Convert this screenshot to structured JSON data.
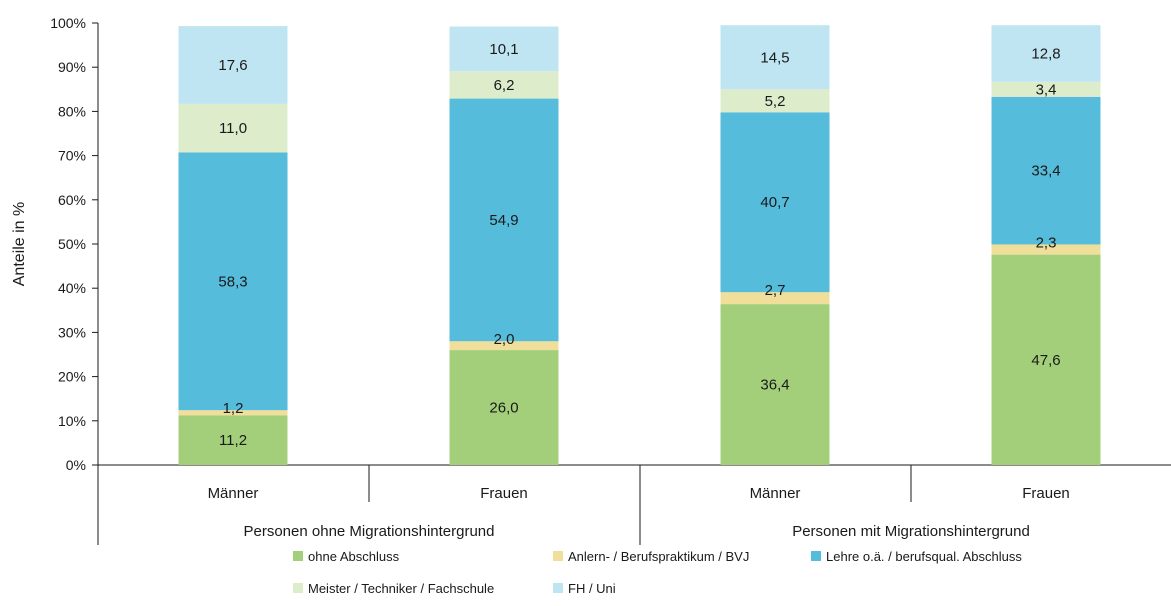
{
  "chart_data": {
    "type": "bar",
    "stacked": true,
    "ylabel": "Anteile in %",
    "ylim": [
      0,
      100
    ],
    "yticks": [
      "0%",
      "10%",
      "20%",
      "30%",
      "40%",
      "50%",
      "60%",
      "70%",
      "80%",
      "90%",
      "100%"
    ],
    "categories": [
      "Männer",
      "Frauen",
      "Männer",
      "Frauen"
    ],
    "groups": [
      {
        "label": "Personen ohne Migrationshintergrund",
        "categories": [
          0,
          1
        ]
      },
      {
        "label": "Personen mit Migrationshintergrund",
        "categories": [
          2,
          3
        ]
      }
    ],
    "series": [
      {
        "name": "ohne Abschluss",
        "color": "#a3cf7a",
        "values": [
          11.2,
          26.0,
          36.4,
          47.6
        ],
        "labels": [
          "11,2",
          "26,0",
          "36,4",
          "47,6"
        ]
      },
      {
        "name": "Anlern- / Berufspraktikum / BVJ",
        "color": "#f0df9b",
        "values": [
          1.2,
          2.0,
          2.7,
          2.3
        ],
        "labels": [
          "1,2",
          "2,0",
          "2,7",
          "2,3"
        ]
      },
      {
        "name": "Lehre o.ä. / berufsqual. Abschluss",
        "color": "#56bcdc",
        "values": [
          58.3,
          54.9,
          40.7,
          33.4
        ],
        "labels": [
          "58,3",
          "54,9",
          "40,7",
          "33,4"
        ]
      },
      {
        "name": "Meister / Techniker / Fachschule",
        "color": "#ddeccb",
        "values": [
          11.0,
          6.2,
          5.2,
          3.4
        ],
        "labels": [
          "11,0",
          "6,2",
          "5,2",
          "3,4"
        ]
      },
      {
        "name": "FH / Uni",
        "color": "#bfe4f2",
        "values": [
          17.6,
          10.1,
          14.5,
          12.8
        ],
        "labels": [
          "17,6",
          "10,1",
          "14,5",
          "12,8"
        ]
      }
    ],
    "legend_position": "bottom",
    "grid": false
  }
}
